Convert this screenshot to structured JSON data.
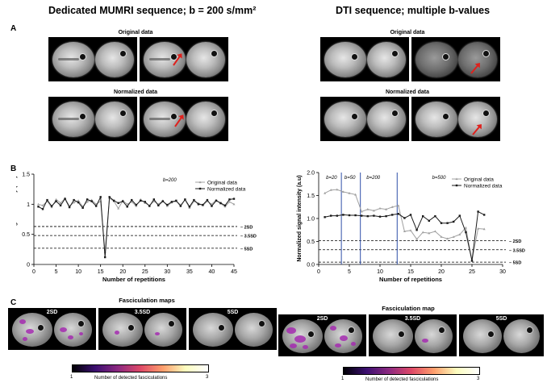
{
  "headings": {
    "left": "Dedicated MUMRI sequence; b = 200 s/mm²",
    "right": "DTI sequence; multiple b-values"
  },
  "panel_letters": {
    "a": "A",
    "b": "B",
    "c": "C"
  },
  "panel_a": {
    "original_label": "Original data",
    "normalized_label": "Normalized data"
  },
  "panel_c": {
    "left_title": "Fasciculation maps",
    "right_title": "Fasciculation map",
    "map_labels": [
      "2SD",
      "3.5SD",
      "5SD"
    ],
    "colorbar_min": "1",
    "colorbar_max": "3",
    "colorbar_label": "Number of detected fasciculations"
  },
  "colors": {
    "original": "#a0a0a0",
    "normalized": "#1a1a1a",
    "blue_line": "#2f4fa8",
    "arrow": "#e0201c",
    "fasciculation": "#a52bb0"
  },
  "chart_data": [
    {
      "type": "line",
      "title": "b=200",
      "xlabel": "Number of repetitions",
      "ylabel": "Normalized signal intensity (a.u)",
      "xlim": [
        0,
        45
      ],
      "ylim": [
        0,
        1.5
      ],
      "xticks": [
        0,
        5,
        10,
        15,
        20,
        25,
        30,
        35,
        40,
        45
      ],
      "yticks": [
        0,
        0.5,
        1,
        1.5
      ],
      "yticklabels": [
        "0",
        "0.5",
        "1",
        "1.5"
      ],
      "legend": [
        "Original data",
        "Normalized data"
      ],
      "thresholds": [
        {
          "y": 0.63,
          "label": "2SD"
        },
        {
          "y": 0.48,
          "label": "3.5SD"
        },
        {
          "y": 0.27,
          "label": "5SD"
        }
      ],
      "series": [
        {
          "name": "Original data",
          "x": [
            1,
            2,
            3,
            4,
            5,
            6,
            7,
            8,
            9,
            10,
            11,
            12,
            13,
            14,
            15,
            16,
            17,
            18,
            19,
            20,
            21,
            22,
            23,
            24,
            25,
            26,
            27,
            28,
            29,
            30,
            31,
            32,
            33,
            34,
            35,
            36,
            37,
            38,
            39,
            40,
            41,
            42,
            43,
            44,
            45
          ],
          "values": [
            1.0,
            0.98,
            1.05,
            0.95,
            1.08,
            1.02,
            1.1,
            0.97,
            1.03,
            1.06,
            0.96,
            1.04,
            1.07,
            1.0,
            1.05,
            0.2,
            1.1,
            1.05,
            0.93,
            1.06,
            1.0,
            1.04,
            0.97,
            1.08,
            1.02,
            0.98,
            1.05,
            1.0,
            1.06,
            0.97,
            1.03,
            1.05,
            0.99,
            1.07,
            0.94,
            1.05,
            1.02,
            0.98,
            1.05,
            1.0,
            1.07,
            1.01,
            0.96,
            1.04,
            1.0
          ]
        },
        {
          "name": "Normalized data",
          "x": [
            1,
            2,
            3,
            4,
            5,
            6,
            7,
            8,
            9,
            10,
            11,
            12,
            13,
            14,
            15,
            16,
            17,
            18,
            19,
            20,
            21,
            22,
            23,
            24,
            25,
            26,
            27,
            28,
            29,
            30,
            31,
            32,
            33,
            34,
            35,
            36,
            37,
            38,
            39,
            40,
            41,
            42,
            43,
            44,
            45
          ],
          "values": [
            0.96,
            0.92,
            1.07,
            0.97,
            1.05,
            0.98,
            1.09,
            0.95,
            1.07,
            1.03,
            0.94,
            1.08,
            1.05,
            0.97,
            1.12,
            0.12,
            1.12,
            1.06,
            1.02,
            1.05,
            0.96,
            1.07,
            0.99,
            1.06,
            1.04,
            0.97,
            1.08,
            0.98,
            1.05,
            0.99,
            1.04,
            1.06,
            0.97,
            1.08,
            0.96,
            1.07,
            1.0,
            0.99,
            1.07,
            0.97,
            1.06,
            1.02,
            0.98,
            1.08,
            1.09
          ]
        }
      ]
    },
    {
      "type": "line",
      "title": "",
      "xlabel": "Number of repetitions",
      "ylabel": "Normalized signal intensity (a.u)",
      "xlim": [
        0,
        30
      ],
      "ylim": [
        0,
        2
      ],
      "xticks": [
        0,
        5,
        10,
        15,
        20,
        25,
        30
      ],
      "yticks": [
        0,
        0.5,
        1,
        1.5,
        2
      ],
      "yticklabels": [
        "0.0",
        "0.5",
        "1.0",
        "1.5",
        "2.0"
      ],
      "legend": [
        "Original data",
        "Normalized data"
      ],
      "b_regions": [
        {
          "label": "b=20",
          "x": 1.2
        },
        {
          "label": "b=50",
          "x": 4.2
        },
        {
          "label": "b=200",
          "x": 7.8
        },
        {
          "label": "b=500",
          "x": 18.5
        }
      ],
      "b_boundaries": [
        3.7,
        6.8,
        12.8
      ],
      "thresholds": [
        {
          "y": 0.52,
          "label": "2SD"
        },
        {
          "y": 0.32,
          "label": "3.5SD"
        },
        {
          "y": 0.05,
          "label": "5SD"
        }
      ],
      "series": [
        {
          "name": "Original data",
          "x": [
            1,
            2,
            3,
            4,
            5,
            6,
            7,
            8,
            9,
            10,
            11,
            12,
            13,
            14,
            15,
            16,
            17,
            18,
            19,
            20,
            21,
            22,
            23,
            24,
            25,
            26,
            27
          ],
          "values": [
            1.55,
            1.62,
            1.63,
            1.58,
            1.55,
            1.52,
            1.15,
            1.2,
            1.17,
            1.22,
            1.2,
            1.25,
            1.28,
            0.72,
            0.74,
            0.55,
            0.7,
            0.68,
            0.72,
            0.6,
            0.56,
            0.6,
            0.65,
            0.8,
            0.08,
            0.78,
            0.77
          ]
        },
        {
          "name": "Normalized data",
          "x": [
            1,
            2,
            3,
            4,
            5,
            6,
            7,
            8,
            9,
            10,
            11,
            12,
            13,
            14,
            15,
            16,
            17,
            18,
            19,
            20,
            21,
            22,
            23,
            24,
            25,
            26,
            27
          ],
          "values": [
            1.03,
            1.06,
            1.06,
            1.08,
            1.07,
            1.07,
            1.06,
            1.05,
            1.06,
            1.04,
            1.05,
            1.08,
            1.1,
            1.01,
            1.08,
            0.75,
            1.05,
            0.95,
            1.05,
            0.9,
            0.9,
            0.93,
            1.06,
            0.7,
            0.08,
            1.15,
            1.08
          ]
        }
      ]
    }
  ]
}
